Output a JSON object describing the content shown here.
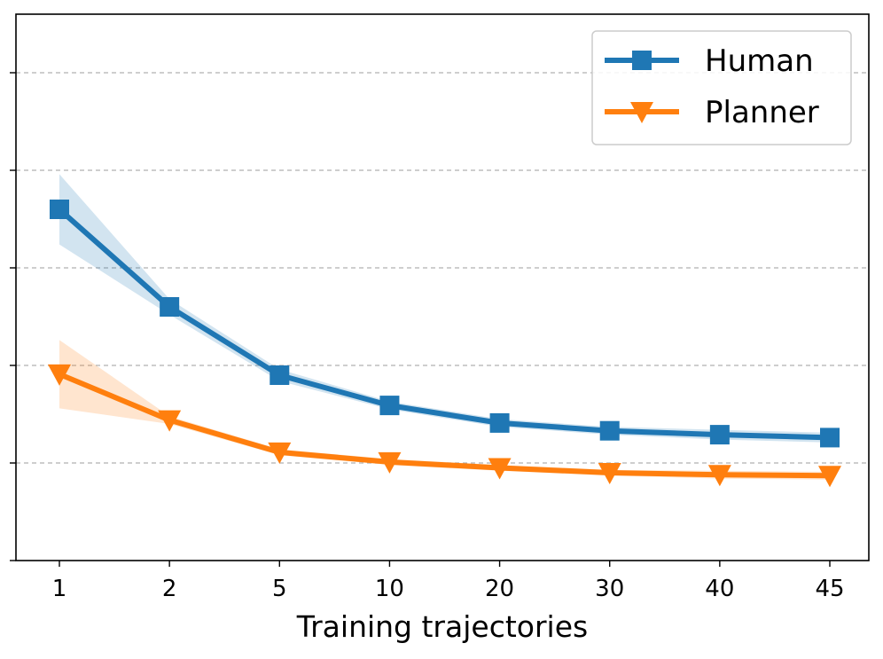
{
  "chart_data": {
    "type": "line",
    "categories": [
      "1",
      "2",
      "5",
      "10",
      "20",
      "30",
      "40",
      "45"
    ],
    "xlabel": "Training trajectories",
    "ylabel": "",
    "title": "",
    "ylim": [
      0,
      5.6
    ],
    "yticks": [
      0,
      1,
      2,
      3,
      4,
      5
    ],
    "grid": "horizontal-dashed",
    "legend_position": "top-right",
    "series": [
      {
        "name": "Human",
        "color": "#1f77b4",
        "marker": "square",
        "values": [
          3.6,
          2.6,
          1.9,
          1.59,
          1.41,
          1.33,
          1.29,
          1.26
        ],
        "lower": [
          3.24,
          2.52,
          1.84,
          1.55,
          1.37,
          1.29,
          1.24,
          1.21
        ],
        "upper": [
          3.96,
          2.68,
          1.96,
          1.63,
          1.45,
          1.37,
          1.34,
          1.31
        ]
      },
      {
        "name": "Planner",
        "color": "#ff7f0e",
        "marker": "triangle-down",
        "values": [
          1.91,
          1.44,
          1.11,
          1.01,
          0.95,
          0.9,
          0.88,
          0.87
        ],
        "lower": [
          1.56,
          1.4,
          1.08,
          0.98,
          0.92,
          0.87,
          0.84,
          0.83
        ],
        "upper": [
          2.26,
          1.48,
          1.14,
          1.04,
          0.98,
          0.93,
          0.92,
          0.91
        ]
      }
    ]
  }
}
